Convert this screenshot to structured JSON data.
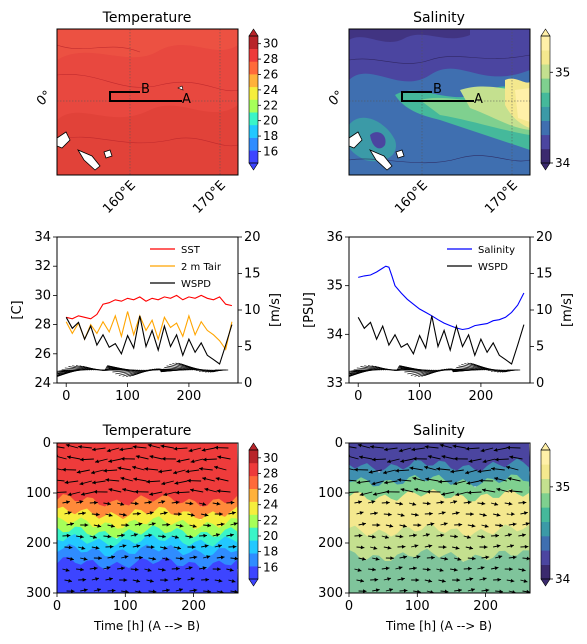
{
  "chart_data": [
    {
      "id": "map-temperature",
      "type": "heatmap",
      "title": "Temperature",
      "xticks": [
        "160°E",
        "170°E"
      ],
      "yticks": [
        "0°"
      ],
      "section_labels": [
        "A",
        "B"
      ],
      "colorbar": {
        "ticks": [
          16,
          18,
          20,
          22,
          24,
          26,
          28,
          30
        ],
        "range": [
          14.5,
          31
        ]
      },
      "colors": [
        "#3d45ff",
        "#2f8cff",
        "#22c8ff",
        "#3af5c8",
        "#a6ff59",
        "#f6ee3c",
        "#ffb13a",
        "#ff6a3a",
        "#ee3b3b",
        "#b8242a"
      ]
    },
    {
      "id": "map-salinity",
      "type": "heatmap",
      "title": "Salinity",
      "xticks": [
        "160°E",
        "170°E"
      ],
      "yticks": [
        "0°"
      ],
      "section_labels": [
        "A",
        "B"
      ],
      "colorbar": {
        "ticks": [
          34,
          35
        ],
        "range": [
          34,
          35.4
        ]
      },
      "colors": [
        "#3b2a6e",
        "#4b45a0",
        "#3f6fb0",
        "#3b9aa7",
        "#45b99b",
        "#7fd08f",
        "#c4e08f",
        "#f4e88e",
        "#fff0a8"
      ]
    },
    {
      "id": "ts-temperature",
      "type": "line",
      "xticks": [
        0,
        100,
        200
      ],
      "xlim": [
        -15,
        280
      ],
      "ylim_left": [
        24,
        34
      ],
      "yticks_left": [
        24,
        26,
        28,
        30,
        32,
        34
      ],
      "ylabel_left": "[C]",
      "ylim_right": [
        0,
        20
      ],
      "yticks_right": [
        0,
        5,
        10,
        15,
        20
      ],
      "ylabel_right": "[m/s]",
      "series": [
        {
          "name": "SST",
          "color": "#ff0000",
          "x": [
            0,
            10,
            20,
            30,
            40,
            50,
            60,
            70,
            80,
            90,
            100,
            110,
            120,
            130,
            140,
            150,
            160,
            170,
            180,
            190,
            200,
            210,
            220,
            230,
            240,
            250,
            260,
            270
          ],
          "values": [
            28.5,
            28.4,
            28.6,
            28.5,
            28.4,
            28.7,
            29.4,
            29.5,
            29.7,
            29.6,
            29.8,
            29.7,
            29.9,
            29.6,
            29.8,
            29.7,
            29.9,
            29.8,
            30.0,
            29.7,
            29.9,
            29.8,
            30.0,
            29.8,
            29.7,
            29.9,
            29.4,
            29.3
          ]
        },
        {
          "name": "2 m Tair",
          "color": "#ffa500",
          "x": [
            0,
            10,
            20,
            30,
            40,
            50,
            60,
            70,
            80,
            90,
            100,
            110,
            120,
            130,
            140,
            150,
            160,
            170,
            180,
            190,
            200,
            210,
            220,
            230,
            240,
            250,
            260,
            270
          ],
          "values": [
            28.2,
            27.4,
            28.1,
            27.0,
            28.0,
            27.4,
            28.2,
            27.5,
            28.6,
            27.2,
            28.9,
            27.3,
            28.6,
            27.6,
            28.3,
            27.0,
            28.5,
            27.8,
            28.1,
            27.2,
            28.6,
            27.3,
            28.2,
            27.6,
            27.3,
            26.9,
            26.3,
            28.2
          ]
        },
        {
          "name": "WSPD",
          "color": "#000000",
          "axis": "right",
          "x": [
            0,
            10,
            20,
            30,
            40,
            50,
            60,
            70,
            80,
            90,
            100,
            110,
            120,
            130,
            140,
            150,
            160,
            170,
            180,
            190,
            200,
            210,
            220,
            230,
            240,
            250,
            260,
            270
          ],
          "values": [
            9.0,
            7.5,
            8.3,
            6.0,
            7.8,
            5.2,
            6.6,
            4.9,
            5.4,
            4.0,
            6.5,
            4.8,
            9.2,
            5.0,
            7.2,
            4.5,
            7.8,
            5.0,
            6.6,
            3.8,
            6.0,
            4.2,
            5.5,
            3.8,
            3.2,
            2.6,
            5.2,
            8.0
          ]
        }
      ],
      "legend": "top-right",
      "vectors": "wind"
    },
    {
      "id": "ts-salinity",
      "type": "line",
      "xticks": [
        0,
        100,
        200
      ],
      "xlim": [
        -15,
        280
      ],
      "ylim_left": [
        33,
        36
      ],
      "yticks_left": [
        33,
        34,
        35,
        36
      ],
      "ylabel_left": "[PSU]",
      "ylim_right": [
        0,
        20
      ],
      "yticks_right": [
        0,
        5,
        10,
        15,
        20
      ],
      "ylabel_right": "[m/s]",
      "series": [
        {
          "name": "Salinity",
          "color": "#0000ff",
          "x": [
            0,
            10,
            20,
            30,
            40,
            45,
            50,
            55,
            60,
            70,
            80,
            90,
            100,
            110,
            120,
            130,
            140,
            150,
            160,
            170,
            180,
            190,
            200,
            210,
            220,
            230,
            240,
            250,
            260,
            270
          ],
          "values": [
            35.17,
            35.2,
            35.22,
            35.28,
            35.36,
            35.4,
            35.38,
            35.2,
            35.0,
            34.85,
            34.72,
            34.62,
            34.52,
            34.45,
            34.38,
            34.3,
            34.23,
            34.18,
            34.13,
            34.1,
            34.12,
            34.18,
            34.2,
            34.22,
            34.28,
            34.3,
            34.35,
            34.45,
            34.6,
            34.85
          ]
        },
        {
          "name": "WSPD",
          "color": "#000000",
          "axis": "right",
          "x": [
            0,
            10,
            20,
            30,
            40,
            50,
            60,
            70,
            80,
            90,
            100,
            110,
            120,
            130,
            140,
            150,
            160,
            170,
            180,
            190,
            200,
            210,
            220,
            230,
            240,
            250,
            260,
            270
          ],
          "values": [
            9.0,
            7.5,
            8.3,
            6.0,
            7.8,
            5.2,
            6.6,
            4.9,
            5.4,
            4.0,
            6.5,
            4.8,
            9.2,
            5.0,
            7.2,
            4.5,
            7.8,
            5.0,
            6.6,
            3.8,
            6.0,
            4.2,
            5.5,
            3.8,
            3.2,
            2.6,
            5.2,
            8.0
          ]
        }
      ],
      "legend": "top-right",
      "vectors": "wind"
    },
    {
      "id": "sec-temperature",
      "type": "heatmap",
      "title": "Temperature",
      "xlabel": "Time [h] (A --> B)",
      "xticks": [
        0,
        100,
        200
      ],
      "xlim": [
        0,
        265
      ],
      "yticks": [
        0,
        100,
        200,
        300
      ],
      "ylim": [
        300,
        0
      ],
      "colorbar": {
        "ticks": [
          16,
          18,
          20,
          22,
          24,
          26,
          28,
          30
        ],
        "range": [
          14.5,
          31
        ]
      },
      "depth_bands": [
        {
          "top": 0,
          "bottom": 115,
          "color": "#ee3b3b"
        },
        {
          "top": 115,
          "bottom": 140,
          "color": "#ff8a3a"
        },
        {
          "top": 140,
          "bottom": 160,
          "color": "#f6ee3c"
        },
        {
          "top": 160,
          "bottom": 178,
          "color": "#a6ff59"
        },
        {
          "top": 178,
          "bottom": 195,
          "color": "#3af5c8"
        },
        {
          "top": 195,
          "bottom": 215,
          "color": "#22c8ff"
        },
        {
          "top": 215,
          "bottom": 240,
          "color": "#2f8cff"
        },
        {
          "top": 240,
          "bottom": 300,
          "color": "#3d45ff"
        }
      ]
    },
    {
      "id": "sec-salinity",
      "type": "heatmap",
      "title": "Salinity",
      "xlabel": "Time [h] (A --> B)",
      "xticks": [
        0,
        100,
        200
      ],
      "xlim": [
        0,
        265
      ],
      "yticks": [
        0,
        100,
        200,
        300
      ],
      "ylim": [
        300,
        0
      ],
      "colorbar": {
        "ticks": [
          34,
          35
        ],
        "range": [
          34,
          35.4
        ]
      },
      "depth_bands": [
        {
          "top": 0,
          "bottom": 45,
          "color": "#4b45a0"
        },
        {
          "top": 45,
          "bottom": 75,
          "color": "#3f8fb0"
        },
        {
          "top": 75,
          "bottom": 105,
          "color": "#7fd08f"
        },
        {
          "top": 105,
          "bottom": 175,
          "color": "#f4e88e"
        },
        {
          "top": 175,
          "bottom": 225,
          "color": "#c4e08f"
        },
        {
          "top": 225,
          "bottom": 300,
          "color": "#7fc49b"
        }
      ]
    }
  ]
}
